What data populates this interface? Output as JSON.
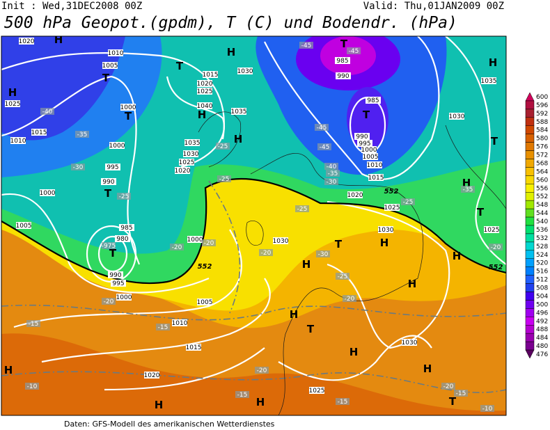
{
  "header": {
    "init": "Init : Wed,31DEC2008 00Z",
    "valid": "Valid: Thu,01JAN2009 00Z",
    "title": "500 hPa Geopot.(gpdm), T (C) und Bodendr. (hPa)"
  },
  "footer": "Daten: GFS-Modell des amerikanischen Wetterdienstes",
  "colorbar": {
    "levels": [
      600,
      596,
      592,
      588,
      584,
      580,
      576,
      572,
      568,
      564,
      560,
      556,
      552,
      548,
      544,
      540,
      536,
      532,
      528,
      524,
      520,
      516,
      512,
      508,
      504,
      500,
      496,
      492,
      488,
      484,
      480,
      476
    ],
    "colors": [
      "#d0005a",
      "#b01040",
      "#a82030",
      "#c03010",
      "#d04800",
      "#d86000",
      "#e07800",
      "#e89000",
      "#f0a800",
      "#f8c000",
      "#f8d800",
      "#f8f000",
      "#e0f000",
      "#a0e800",
      "#60e020",
      "#20e040",
      "#00e070",
      "#00e0a0",
      "#00d8d0",
      "#00c0f0",
      "#00a0ff",
      "#0080ff",
      "#2060ff",
      "#2040f0",
      "#4000f0",
      "#7000f0",
      "#a000f0",
      "#c800f0",
      "#b400d0",
      "#9a00b0",
      "#7a0090",
      "#5a0060"
    ]
  },
  "map": {
    "labels": [
      "1020",
      "H",
      "1010",
      "1005",
      "T",
      "H",
      "1025",
      "-40",
      "1000",
      "T",
      "1015",
      "1010",
      "-35",
      "1000",
      "995",
      "-30",
      "990",
      "T",
      "1000",
      "-25",
      "1005",
      "985",
      "980",
      "-975",
      "T",
      "990",
      "995",
      "1000",
      "-20",
      "1005",
      "1010",
      "-15",
      "-15",
      "1015",
      "1020",
      "H",
      "-10",
      "H",
      "1015",
      "1020",
      "1025",
      "1030",
      "H",
      "T",
      "1040",
      "H",
      "1035",
      "1035",
      "1030",
      "1025",
      "1020",
      "-25",
      "-25",
      "H",
      "-45",
      "-45",
      "985",
      "990",
      "T",
      "985",
      "T",
      "-45",
      "990",
      "995",
      "1000",
      "1005",
      "1010",
      "1015",
      "-45",
      "-40",
      "-35",
      "-30",
      "1020",
      "1025",
      "-25",
      "-25",
      "1030",
      "1030",
      "T",
      "H",
      "H",
      "-30",
      "-25",
      "H",
      "-20",
      "1000",
      "-20",
      "-20",
      "-20",
      "H",
      "T",
      "H",
      "1030",
      "H",
      "-20",
      "-15",
      "1025",
      "-15",
      "H",
      "H",
      "1035",
      "1030",
      "T",
      "H",
      "-35",
      "T",
      "1025",
      "-20",
      "H",
      "-20",
      "-15",
      "-10",
      "T",
      "552",
      "552",
      "552"
    ]
  }
}
